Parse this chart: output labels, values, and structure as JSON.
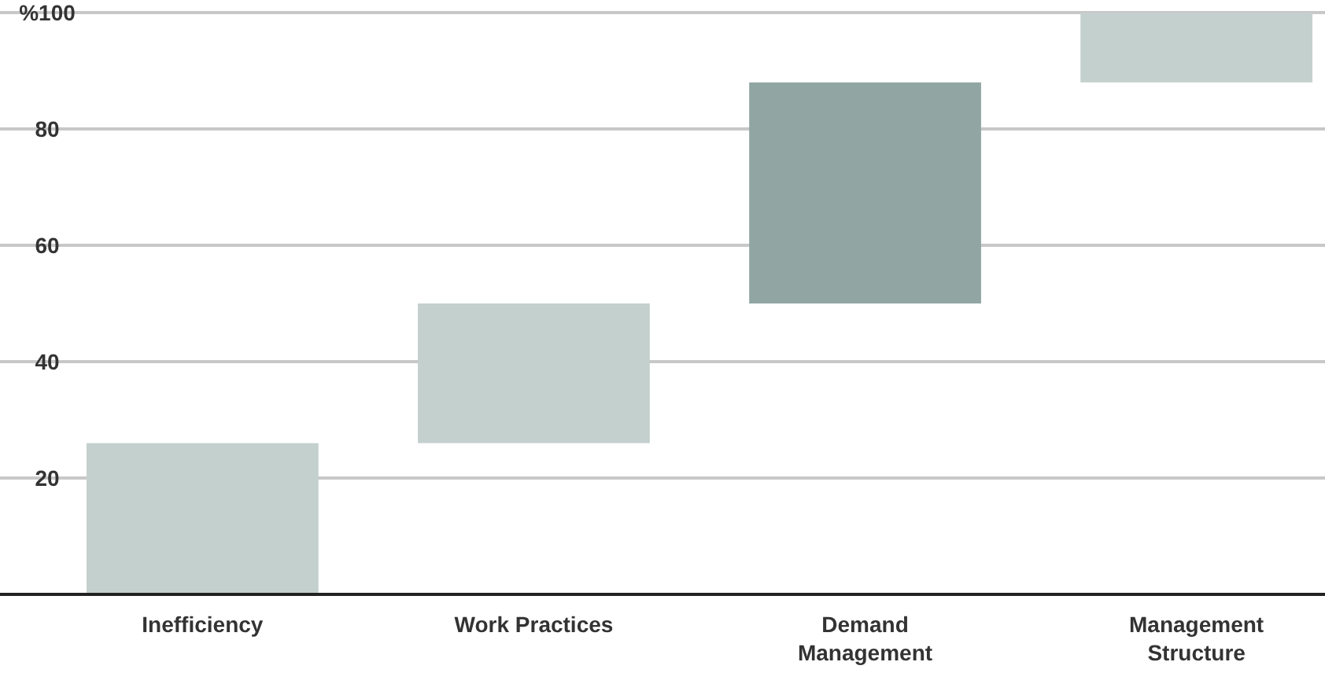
{
  "chart_data": {
    "type": "bar",
    "categories": [
      "Inefficiency",
      "Work Practices",
      "Demand Management",
      "Management Structure"
    ],
    "values": [
      26,
      24,
      38,
      12
    ],
    "base": [
      0,
      26,
      50,
      88
    ],
    "colors": [
      "#c4d0ce",
      "#c4d0ce",
      "#91a6a3",
      "#c4d0ce"
    ],
    "ylim": [
      0,
      100
    ],
    "yticks": [
      20,
      40,
      60,
      80,
      {
        "value": 100,
        "label": "%100"
      }
    ],
    "grid": "y"
  }
}
